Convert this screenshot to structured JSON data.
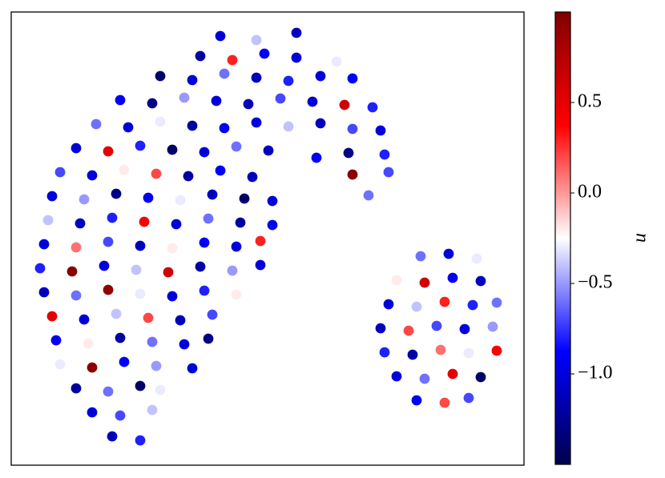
{
  "chart_data": {
    "type": "scatter",
    "xlim": [
      0,
      640
    ],
    "ylim": [
      0,
      566
    ],
    "x": [
      261,
      306,
      356,
      236,
      276,
      316,
      356,
      406,
      186,
      226,
      266,
      306,
      346,
      386,
      426,
      136,
      176,
      216,
      256,
      296,
      336,
      376,
      416,
      451,
      106,
      146,
      186,
      226,
      266,
      306,
      346,
      386,
      426,
      461,
      81,
      121,
      161,
      201,
      241,
      281,
      321,
      381,
      421,
      466,
      61,
      101,
      141,
      181,
      221,
      261,
      301,
      426,
      471,
      51,
      91,
      131,
      171,
      211,
      251,
      291,
      326,
      446,
      46,
      86,
      126,
      166,
      206,
      246,
      286,
      326,
      41,
      81,
      121,
      161,
      201,
      241,
      281,
      311,
      36,
      76,
      116,
      156,
      196,
      236,
      276,
      311,
      41,
      81,
      121,
      161,
      201,
      241,
      281,
      51,
      91,
      131,
      171,
      211,
      251,
      56,
      96,
      136,
      176,
      216,
      246,
      61,
      101,
      141,
      181,
      226,
      81,
      121,
      161,
      186,
      101,
      136,
      176,
      126,
      161,
      511,
      546,
      581,
      481,
      516,
      551,
      586,
      471,
      506,
      541,
      576,
      606,
      461,
      496,
      531,
      566,
      601,
      466,
      501,
      536,
      571,
      606,
      481,
      516,
      551,
      586,
      506,
      541,
      571
    ],
    "y": [
      536,
      531,
      540,
      511,
      506,
      514,
      509,
      504,
      486,
      481,
      489,
      484,
      480,
      486,
      483,
      456,
      452,
      459,
      455,
      451,
      458,
      454,
      450,
      447,
      426,
      422,
      429,
      424,
      421,
      428,
      423,
      427,
      420,
      418,
      396,
      392,
      399,
      394,
      391,
      398,
      393,
      384,
      390,
      388,
      366,
      362,
      369,
      364,
      361,
      368,
      360,
      363,
      366,
      336,
      332,
      339,
      334,
      331,
      338,
      333,
      330,
      337,
      306,
      302,
      309,
      304,
      301,
      308,
      303,
      300,
      276,
      272,
      279,
      274,
      271,
      278,
      273,
      280,
      246,
      242,
      249,
      244,
      241,
      248,
      243,
      250,
      216,
      212,
      219,
      214,
      211,
      218,
      213,
      186,
      182,
      189,
      184,
      181,
      188,
      156,
      152,
      159,
      154,
      151,
      158,
      126,
      122,
      129,
      124,
      121,
      96,
      92,
      99,
      94,
      66,
      62,
      69,
      36,
      31,
      261,
      264,
      258,
      231,
      228,
      234,
      230,
      201,
      198,
      204,
      200,
      203,
      171,
      168,
      174,
      170,
      173,
      141,
      138,
      144,
      140,
      143,
      111,
      108,
      114,
      110,
      81,
      78,
      84
    ],
    "c": [
      -1.0,
      -0.4,
      -1.1,
      -1.2,
      0.3,
      -0.9,
      -1.0,
      -0.3,
      -1.4,
      -1.0,
      -0.6,
      -1.1,
      -0.8,
      -1.0,
      -0.9,
      -0.9,
      -1.3,
      -0.5,
      -1.0,
      -1.1,
      -0.7,
      -1.0,
      0.6,
      -0.8,
      -0.6,
      -1.0,
      -0.3,
      -1.2,
      -0.9,
      -1.0,
      -0.4,
      -1.1,
      -0.7,
      -1.0,
      -1.0,
      0.5,
      -0.8,
      -1.4,
      -1.0,
      -0.6,
      -1.1,
      -0.9,
      -1.3,
      -0.8,
      -0.7,
      -1.0,
      -0.2,
      0.2,
      -1.2,
      -0.9,
      -1.1,
      0.95,
      -0.7,
      -1.0,
      -0.5,
      -1.3,
      -0.9,
      -0.3,
      -1.1,
      -1.4,
      -1.0,
      -0.6,
      -0.4,
      -1.1,
      -0.8,
      0.4,
      -1.0,
      -0.6,
      -1.2,
      -0.9,
      -1.0,
      0.1,
      -0.7,
      -1.1,
      -0.2,
      -0.9,
      -1.0,
      0.3,
      -0.8,
      0.95,
      -1.0,
      -0.4,
      0.6,
      -1.2,
      -0.5,
      -1.0,
      -1.1,
      -0.6,
      0.9,
      -0.3,
      -1.0,
      -0.8,
      -0.2,
      0.5,
      -1.0,
      -0.4,
      0.2,
      -1.1,
      -0.7,
      -0.9,
      -0.2,
      -1.2,
      -0.6,
      -1.0,
      -1.3,
      -0.3,
      0.95,
      -0.9,
      -0.5,
      -1.0,
      -1.2,
      -0.6,
      -1.4,
      -0.3,
      -1.0,
      -0.7,
      -0.4,
      -1.1,
      -0.8,
      -0.6,
      -1.0,
      -0.3,
      -0.2,
      0.6,
      -0.9,
      -1.1,
      -1.0,
      -0.4,
      0.3,
      -0.8,
      -0.6,
      -1.1,
      0.2,
      -0.7,
      -1.0,
      -0.5,
      -0.8,
      -1.2,
      0.1,
      -0.3,
      0.4,
      -1.0,
      -0.6,
      0.5,
      -1.4,
      -0.9,
      0.2,
      -0.7
    ],
    "cmap": "seismic",
    "clim": [
      -1.5,
      1.0
    ],
    "colorbar_label": "u",
    "colorbar_ticks": [
      0.5,
      {
        "value": 0.0,
        "label": "0.0"
      },
      {
        "value": -0.5,
        "label": "−0.5"
      },
      {
        "value": -1.0,
        "label": "−1.0"
      }
    ]
  }
}
